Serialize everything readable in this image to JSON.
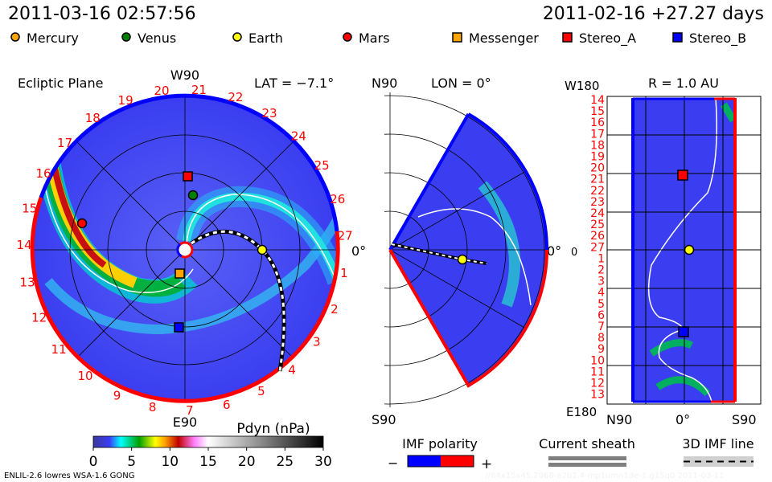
{
  "header": {
    "current_time": "2011-03-16 02:57:56",
    "run_start": "2011-02-16 +27.27 days"
  },
  "legend": {
    "bodies": [
      {
        "label": "Mercury",
        "shape": "circle",
        "color": "#ffa500"
      },
      {
        "label": "Venus",
        "shape": "circle",
        "color": "#008000"
      },
      {
        "label": "Earth",
        "shape": "circle",
        "color": "#ffff00"
      },
      {
        "label": "Mars",
        "shape": "circle",
        "color": "#ff0000"
      },
      {
        "label": "Messenger",
        "shape": "square",
        "color": "#ffa500"
      },
      {
        "label": "Stereo_A",
        "shape": "square",
        "color": "#ff0000"
      },
      {
        "label": "Stereo_B",
        "shape": "square",
        "color": "#0000ff"
      }
    ]
  },
  "ecliptic_panel": {
    "title": "Ecliptic Plane",
    "top_label": "W90",
    "bottom_label": "E90",
    "right_label": "0°",
    "lat_label": "LAT = −7.1°",
    "rotation_labels": [
      "1",
      "2",
      "3",
      "4",
      "5",
      "6",
      "7",
      "8",
      "9",
      "10",
      "11",
      "12",
      "13",
      "14",
      "15",
      "16",
      "17",
      "18",
      "19",
      "20",
      "21",
      "22",
      "23",
      "24",
      "25",
      "26",
      "27"
    ]
  },
  "meridional_panel": {
    "top_label": "N90",
    "bottom_label": "S90",
    "right_label": "0°",
    "lon_label": "LON = 0°"
  },
  "radial_panel": {
    "title": "R = 1.0 AU",
    "top_label": "W180",
    "bottom_label": "E180",
    "left_label": "0",
    "x_labels": [
      "N90",
      "0°",
      "S90"
    ],
    "rotation_labels": [
      "14",
      "15",
      "16",
      "17",
      "18",
      "19",
      "20",
      "21",
      "22",
      "23",
      "24",
      "25",
      "26",
      "27",
      "1",
      "2",
      "3",
      "4",
      "5",
      "6",
      "7",
      "8",
      "9",
      "10",
      "11",
      "12",
      "13"
    ]
  },
  "colors": {
    "field": "#3a3ef2",
    "positive_polarity": "#ff0000",
    "negative_polarity": "#0000ff"
  },
  "chart_data": {
    "type": "heatmap",
    "title": "Pdyn (nPa)",
    "colorbar": {
      "label": "Pdyn (nPa)",
      "range": [
        0,
        30
      ],
      "ticks": [
        "0",
        "5",
        "10",
        "15",
        "20",
        "25",
        "30"
      ]
    },
    "views": [
      "Ecliptic Plane",
      "Meridional (LON = 0°)",
      "R = 1.0 AU"
    ],
    "lat_deg": -7.1,
    "lon_deg": 0,
    "radius_au": 1.0
  },
  "bottom_legend": {
    "imf_polarity": "IMF polarity",
    "minus": "−",
    "plus": "+",
    "current_sheath": "Current sheath",
    "imf_line": "3D IMF line"
  },
  "footer": {
    "model": "ENLIL-2.6 lowres WSA-1.6 GONG",
    "run_id": "..//64x15x45.2068-a2b2.4-mp1umn1de-1.g15q0    2011-03-11"
  }
}
